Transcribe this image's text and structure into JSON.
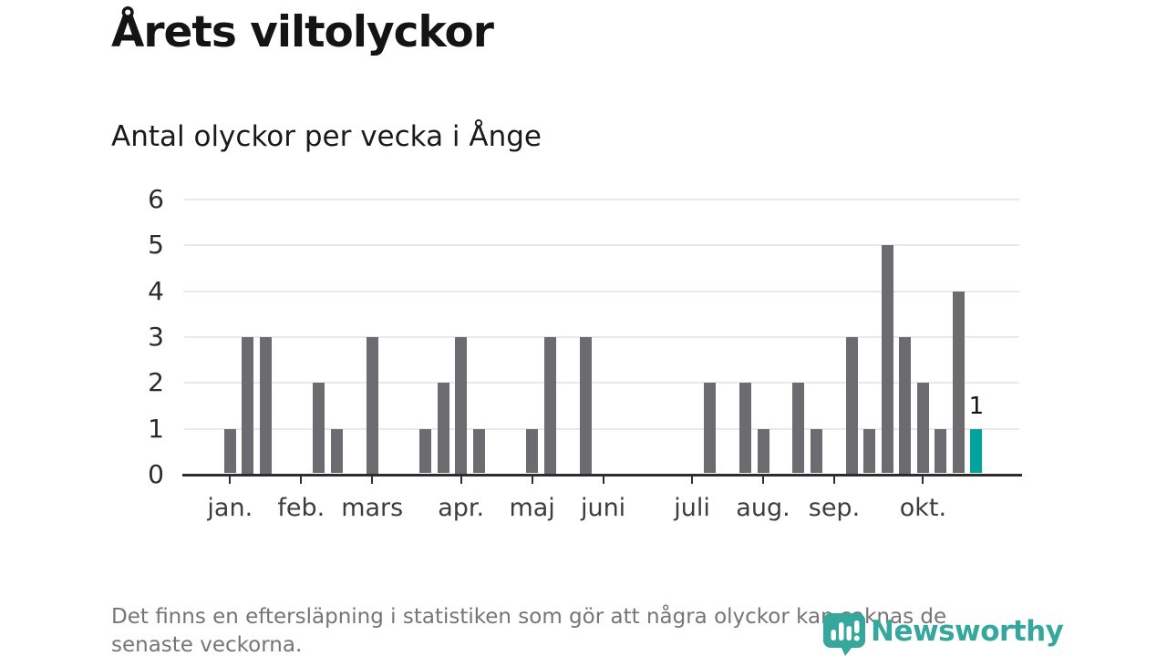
{
  "header": {
    "title": "Årets viltolyckor",
    "subtitle": "Antal olyckor per vecka i Ånge"
  },
  "footer": {
    "note": "Det finns en eftersläpning i statistiken som gör att några olyckor kan saknas de senaste veckorna.",
    "brand": "Newsworthy",
    "brand_icon": "newsworthy-bubble-barchart-icon"
  },
  "colors": {
    "bar": "#6b6b70",
    "highlight": "#00a49c",
    "axis": "#2d2d2d",
    "grid": "#e9e9e9",
    "brand_teal": "#35a79c",
    "text_dark": "#141414",
    "text_gray": "#757575"
  },
  "chart_data": {
    "type": "bar",
    "title": "Årets viltolyckor",
    "subtitle": "Antal olyckor per vecka i Ånge",
    "xlabel": "",
    "ylabel": "",
    "x_unit": "vecka",
    "first_week": 1,
    "values": [
      1,
      3,
      3,
      0,
      0,
      2,
      1,
      0,
      3,
      0,
      0,
      1,
      2,
      3,
      1,
      0,
      0,
      1,
      3,
      0,
      3,
      0,
      0,
      0,
      0,
      0,
      0,
      2,
      0,
      2,
      1,
      0,
      2,
      1,
      0,
      3,
      1,
      5,
      3,
      2,
      1,
      4,
      1
    ],
    "highlight_week": 43,
    "highlight_label": "1",
    "month_ticks": [
      {
        "label": "jan.",
        "week": 1
      },
      {
        "label": "feb.",
        "week": 5
      },
      {
        "label": "mars",
        "week": 9
      },
      {
        "label": "apr.",
        "week": 14
      },
      {
        "label": "maj",
        "week": 18
      },
      {
        "label": "juni",
        "week": 22
      },
      {
        "label": "juli",
        "week": 27
      },
      {
        "label": "aug.",
        "week": 31
      },
      {
        "label": "sep.",
        "week": 35
      },
      {
        "label": "okt.",
        "week": 40
      }
    ],
    "ylim": [
      0,
      6
    ],
    "yticks": [
      0,
      1,
      2,
      3,
      4,
      5,
      6
    ],
    "grid": "horizontal",
    "legend": "none"
  }
}
